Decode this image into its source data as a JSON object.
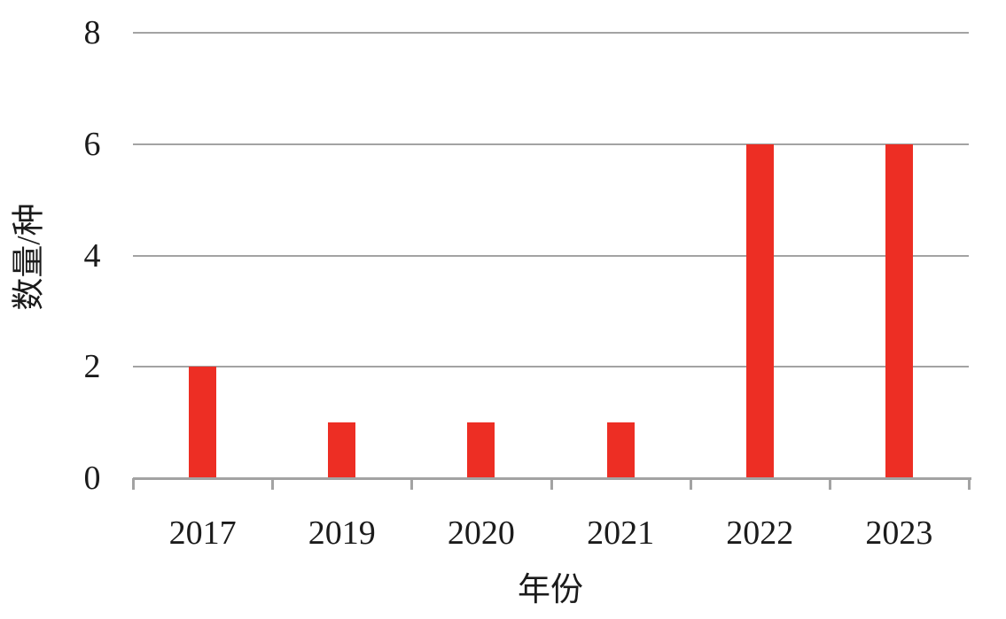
{
  "chart_data": {
    "type": "bar",
    "title": "",
    "categories": [
      "2017",
      "2019",
      "2020",
      "2021",
      "2022",
      "2023"
    ],
    "values": [
      2,
      1,
      1,
      1,
      6,
      6
    ],
    "xlabel": "年份",
    "ylabel": "数量/种",
    "yticks": [
      0,
      2,
      4,
      6,
      8
    ],
    "ylim": [
      0,
      8
    ],
    "grid": "horizontal-only",
    "legend": "none",
    "colors": {
      "bar": "#ED2E24",
      "axis": "#A3A3A3",
      "gridline": "#A3A3A3",
      "text": "#1B1B1B"
    }
  }
}
